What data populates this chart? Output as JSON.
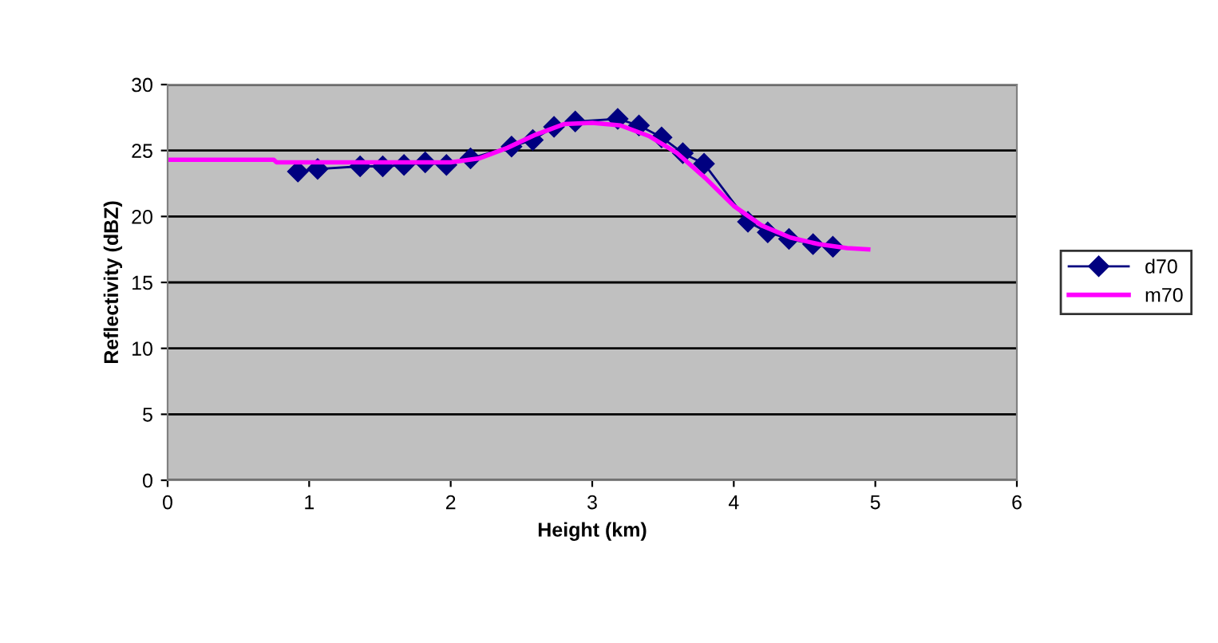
{
  "chart_data": {
    "type": "line",
    "xlabel": "Height (km)",
    "ylabel": "Reflectivity (dBZ)",
    "xlim": [
      0,
      6
    ],
    "xticks": [
      0,
      1,
      2,
      3,
      4,
      5,
      6
    ],
    "ylim": [
      0,
      30
    ],
    "yticks": [
      0,
      5,
      10,
      15,
      20,
      25,
      30
    ],
    "grid": "y",
    "legend": "right",
    "series": [
      {
        "name": "d70",
        "color": "#000080",
        "marker": "diamond",
        "x": [
          0.92,
          1.06,
          1.36,
          1.52,
          1.67,
          1.82,
          1.97,
          2.14,
          2.43,
          2.58,
          2.73,
          2.88,
          3.18,
          3.33,
          3.49,
          3.64,
          3.79,
          4.1,
          4.24,
          4.39,
          4.56,
          4.7
        ],
        "values": [
          23.4,
          23.6,
          23.8,
          23.8,
          23.9,
          24.1,
          23.9,
          24.4,
          25.3,
          25.8,
          26.8,
          27.2,
          27.4,
          26.9,
          26.0,
          24.8,
          24.0,
          19.6,
          18.8,
          18.3,
          17.9,
          17.7
        ]
      },
      {
        "name": "m70",
        "color": "#ff00ff",
        "marker": "none",
        "x": [
          0,
          0.75,
          0.77,
          1.5,
          2.0,
          2.2,
          2.4,
          2.6,
          2.8,
          3.0,
          3.2,
          3.4,
          3.6,
          3.8,
          4.0,
          4.2,
          4.4,
          4.6,
          4.8,
          4.95
        ],
        "values": [
          24.3,
          24.3,
          24.1,
          24.1,
          24.1,
          24.4,
          25.2,
          26.2,
          27.0,
          27.1,
          26.9,
          26.1,
          24.8,
          22.9,
          20.8,
          19.3,
          18.4,
          17.9,
          17.6,
          17.5
        ]
      }
    ]
  }
}
